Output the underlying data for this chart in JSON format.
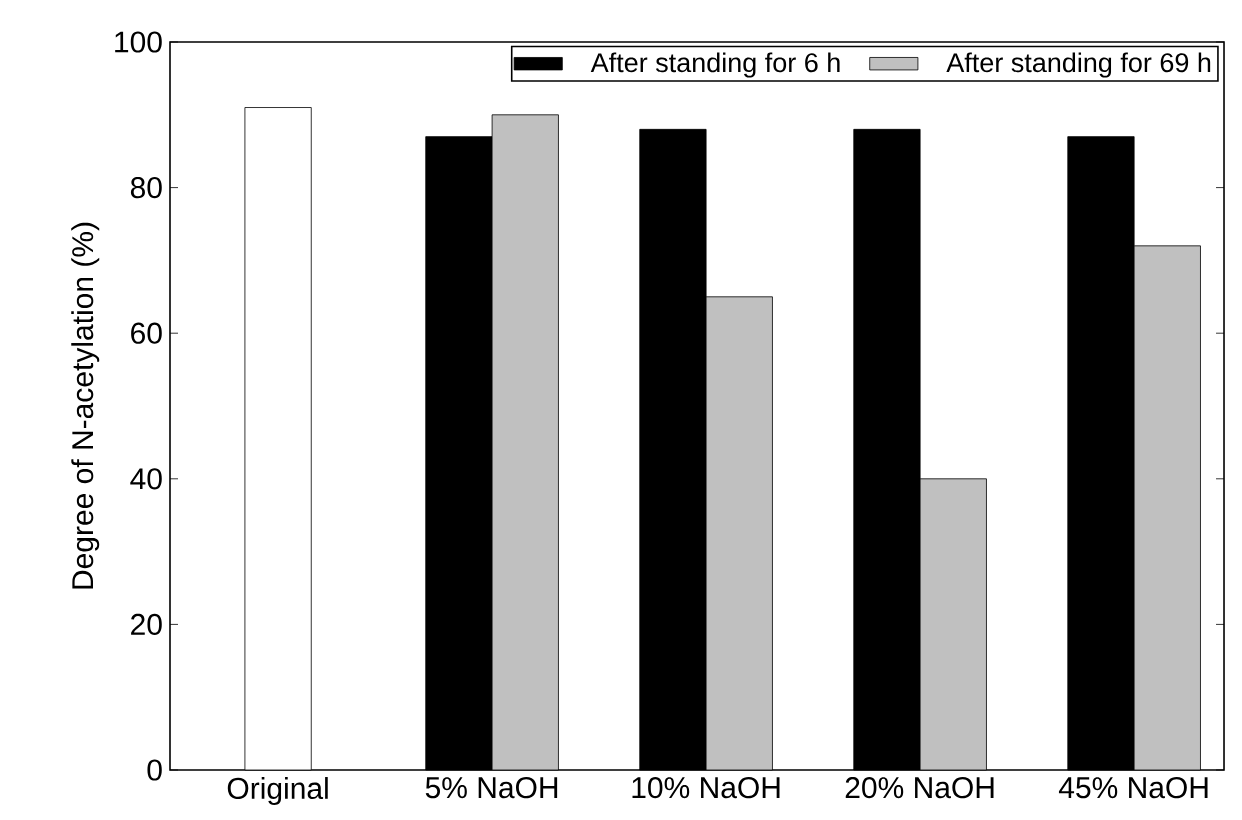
{
  "chart_data": {
    "type": "bar",
    "ylabel": "Degree of N-acetylation (%)",
    "categories": [
      "Original",
      "5% NaOH",
      "10% NaOH",
      "20% NaOH",
      "45% NaOH"
    ],
    "series": [
      {
        "name": "After standing for 6 h",
        "color": "#000000",
        "values": [
          null,
          87,
          88,
          88,
          87
        ]
      },
      {
        "name": "After standing for 69 h",
        "color": "#c0c0c0",
        "values": [
          null,
          90,
          65,
          40,
          72
        ]
      },
      {
        "color": "#ffffff",
        "values": [
          91,
          null,
          null,
          null,
          null
        ]
      }
    ],
    "ylim": [
      0,
      100
    ],
    "yticks": [
      0,
      20,
      40,
      60,
      80,
      100
    ],
    "legend": "top right"
  }
}
